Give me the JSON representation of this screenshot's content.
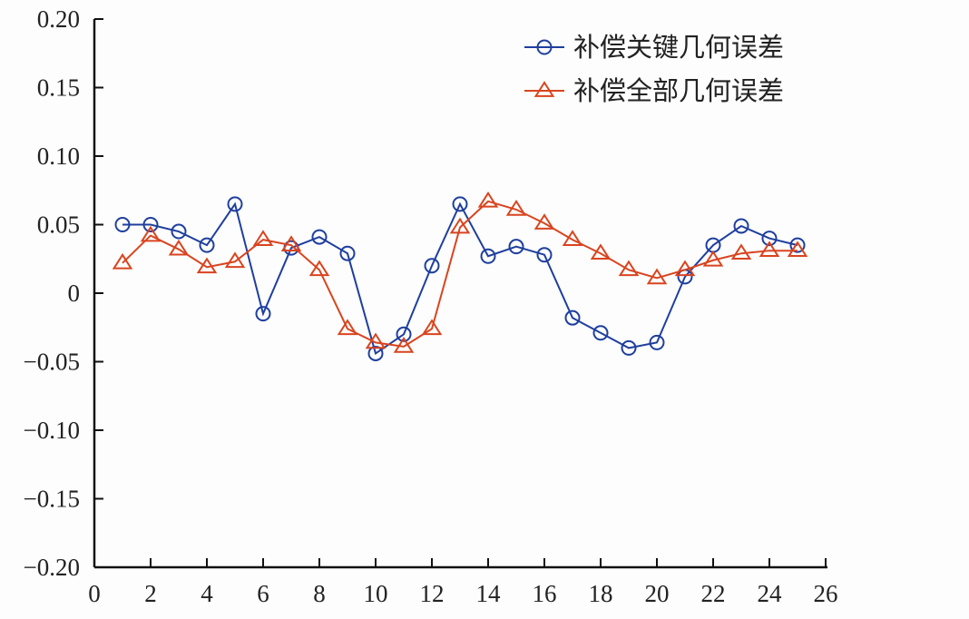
{
  "chart_data": {
    "type": "line",
    "title": "",
    "xlabel": "",
    "ylabel": "",
    "xlim": [
      0,
      26
    ],
    "ylim": [
      -0.2,
      0.2
    ],
    "xticks": [
      0,
      2,
      4,
      6,
      8,
      10,
      12,
      14,
      16,
      18,
      20,
      22,
      24,
      26
    ],
    "yticks": [
      -0.2,
      -0.15,
      -0.1,
      -0.05,
      0,
      0.05,
      0.1,
      0.15,
      0.2
    ],
    "ytick_labels": [
      "−0.20",
      "−0.15",
      "−0.10",
      "−0.05",
      "0",
      "0.05",
      "0.10",
      "0.15",
      "0.20"
    ],
    "grid": false,
    "legend_position": "top-right",
    "x": [
      1,
      2,
      3,
      4,
      5,
      6,
      7,
      8,
      9,
      10,
      11,
      12,
      13,
      14,
      15,
      16,
      17,
      18,
      19,
      20,
      21,
      22,
      23,
      24,
      25
    ],
    "series": [
      {
        "name": "补偿关键几何误差",
        "color": "#1f3f9e",
        "marker": "circle",
        "values": [
          0.05,
          0.05,
          0.045,
          0.035,
          0.065,
          -0.015,
          0.033,
          0.041,
          0.029,
          -0.044,
          -0.03,
          0.02,
          0.065,
          0.027,
          0.034,
          0.028,
          -0.018,
          -0.029,
          -0.04,
          -0.036,
          0.012,
          0.035,
          0.049,
          0.04,
          0.035
        ]
      },
      {
        "name": "补偿全部几何误差",
        "color": "#d9441f",
        "marker": "triangle",
        "values": [
          0.022,
          0.042,
          0.032,
          0.019,
          0.023,
          0.039,
          0.035,
          0.017,
          -0.026,
          -0.036,
          -0.039,
          -0.026,
          0.048,
          0.067,
          0.061,
          0.051,
          0.039,
          0.029,
          0.017,
          0.011,
          0.017,
          0.024,
          0.029,
          0.031,
          0.031
        ]
      }
    ]
  }
}
